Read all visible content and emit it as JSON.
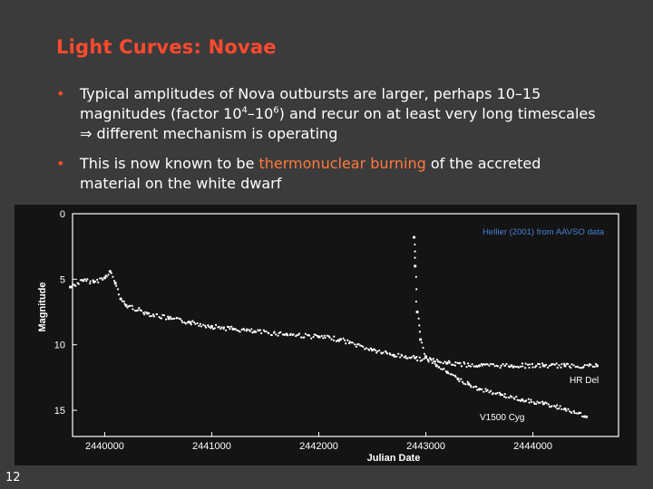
{
  "slide": {
    "title": "Light Curves: Novae",
    "page_number": "12",
    "bullets": [
      {
        "parts": {
          "a": "Typical amplitudes of Nova outbursts are larger, perhaps 10–15 magnitudes (factor 10",
          "sup1": "4",
          "b": "–10",
          "sup2": "6",
          "c": ") and recur on at least very long timescales ⇒ different mechanism is operating"
        }
      },
      {
        "parts": {
          "a": "This is now known to be ",
          "highlight": "thermonuclear burning",
          "c": " of the accreted material on the white dwarf"
        }
      }
    ],
    "colors": {
      "background": "#3b3b3b",
      "title": "#ff4a2e",
      "bullet_marker": "#ff4a2e",
      "highlight": "#ff7a3c",
      "credit": "#4a7fd4",
      "plot_bg": "#141414",
      "data": "#ffffff"
    }
  },
  "chart_data": {
    "type": "scatter",
    "credit": "Hellier (2001) from AAVSO data",
    "xlabel": "Julian Date",
    "ylabel": "Magnitude",
    "xlim": [
      2439700,
      2444800
    ],
    "ylim": [
      0,
      17
    ],
    "y_inverted": true,
    "x_ticks": [
      2440000,
      2441000,
      2442000,
      2443000,
      2444000
    ],
    "y_ticks": [
      0,
      5,
      10,
      15
    ],
    "series": [
      {
        "name": "HR Del",
        "x": [
          2439680,
          2439800,
          2439900,
          2440000,
          2440050,
          2440100,
          2440150,
          2440200,
          2440400,
          2440600,
          2440800,
          2441000,
          2441200,
          2441400,
          2441700,
          2442000,
          2442200,
          2442500,
          2442700,
          2442900,
          2443200,
          2443500,
          2443800,
          2444100,
          2444300,
          2444600
        ],
        "y": [
          5.6,
          5.1,
          5.2,
          4.9,
          4.4,
          5.3,
          6.5,
          7.0,
          7.6,
          8.0,
          8.3,
          8.6,
          8.8,
          9.0,
          9.2,
          9.4,
          9.6,
          10.4,
          10.8,
          11.0,
          11.4,
          11.6,
          11.6,
          11.6,
          11.6,
          11.6
        ]
      },
      {
        "name": "V1500 Cyg",
        "x": [
          2442890,
          2442900,
          2442920,
          2442950,
          2443000,
          2443100,
          2443200,
          2443300,
          2443400,
          2443500,
          2443700,
          2443900,
          2444100,
          2444300,
          2444500
        ],
        "y": [
          1.8,
          4.0,
          7.5,
          9.6,
          10.9,
          11.6,
          12.1,
          12.6,
          13.0,
          13.4,
          13.8,
          14.2,
          14.5,
          14.9,
          15.5
        ]
      }
    ],
    "grid": false,
    "legend": "labels near curves (lower-right)"
  }
}
